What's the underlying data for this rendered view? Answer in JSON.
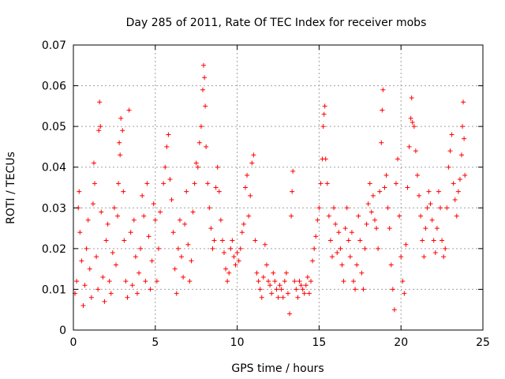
{
  "chart_data": {
    "type": "scatter",
    "title": "Day 285 of 2011, Rate Of TEC Index for receiver mobs",
    "xlabel": "GPS time / hours",
    "ylabel": "ROTI / TECUs",
    "xlim": [
      0,
      25
    ],
    "ylim": [
      0,
      0.07
    ],
    "x_ticks": [
      "0",
      "5",
      "10",
      "15",
      "20",
      "25"
    ],
    "x_tick_values": [
      0,
      5,
      10,
      15,
      20,
      25
    ],
    "y_ticks": [
      "0",
      "0.01",
      "0.02",
      "0.03",
      "0.04",
      "0.05",
      "0.06",
      "0.07"
    ],
    "y_tick_values": [
      0,
      0.01,
      0.02,
      0.03,
      0.04,
      0.05,
      0.06,
      0.07
    ],
    "grid": true,
    "marker": "+",
    "color": "#ff0000",
    "series": [
      {
        "name": "ROTI",
        "points": [
          [
            0.1,
            0.009
          ],
          [
            0.2,
            0.012
          ],
          [
            0.3,
            0.03
          ],
          [
            0.35,
            0.034
          ],
          [
            0.4,
            0.024
          ],
          [
            0.5,
            0.017
          ],
          [
            0.6,
            0.006
          ],
          [
            0.7,
            0.011
          ],
          [
            0.8,
            0.02
          ],
          [
            0.9,
            0.027
          ],
          [
            1.0,
            0.015
          ],
          [
            1.1,
            0.008
          ],
          [
            1.2,
            0.031
          ],
          [
            1.25,
            0.041
          ],
          [
            1.3,
            0.036
          ],
          [
            1.4,
            0.018
          ],
          [
            1.5,
            0.01
          ],
          [
            1.55,
            0.049
          ],
          [
            1.6,
            0.056
          ],
          [
            1.65,
            0.05
          ],
          [
            1.7,
            0.029
          ],
          [
            1.8,
            0.013
          ],
          [
            1.9,
            0.007
          ],
          [
            2.0,
            0.022
          ],
          [
            2.1,
            0.026
          ],
          [
            2.2,
            0.012
          ],
          [
            2.3,
            0.009
          ],
          [
            2.4,
            0.019
          ],
          [
            2.5,
            0.03
          ],
          [
            2.6,
            0.016
          ],
          [
            2.7,
            0.028
          ],
          [
            2.75,
            0.036
          ],
          [
            2.8,
            0.046
          ],
          [
            2.85,
            0.043
          ],
          [
            2.9,
            0.052
          ],
          [
            3.0,
            0.049
          ],
          [
            3.05,
            0.034
          ],
          [
            3.1,
            0.022
          ],
          [
            3.2,
            0.012
          ],
          [
            3.3,
            0.008
          ],
          [
            3.4,
            0.054
          ],
          [
            3.5,
            0.024
          ],
          [
            3.6,
            0.011
          ],
          [
            3.7,
            0.027
          ],
          [
            3.8,
            0.018
          ],
          [
            3.9,
            0.009
          ],
          [
            4.0,
            0.014
          ],
          [
            4.1,
            0.02
          ],
          [
            4.2,
            0.033
          ],
          [
            4.3,
            0.028
          ],
          [
            4.4,
            0.012
          ],
          [
            4.5,
            0.036
          ],
          [
            4.6,
            0.023
          ],
          [
            4.7,
            0.01
          ],
          [
            4.8,
            0.017
          ],
          [
            4.9,
            0.031
          ],
          [
            5.0,
            0.027
          ],
          [
            5.1,
            0.012
          ],
          [
            5.2,
            0.02
          ],
          [
            5.3,
            0.029
          ],
          [
            5.5,
            0.036
          ],
          [
            5.6,
            0.04
          ],
          [
            5.7,
            0.045
          ],
          [
            5.8,
            0.048
          ],
          [
            5.9,
            0.037
          ],
          [
            6.0,
            0.032
          ],
          [
            6.1,
            0.024
          ],
          [
            6.2,
            0.015
          ],
          [
            6.3,
            0.009
          ],
          [
            6.4,
            0.02
          ],
          [
            6.5,
            0.027
          ],
          [
            6.6,
            0.018
          ],
          [
            6.7,
            0.013
          ],
          [
            6.8,
            0.026
          ],
          [
            6.9,
            0.034
          ],
          [
            7.0,
            0.021
          ],
          [
            7.1,
            0.012
          ],
          [
            7.2,
            0.017
          ],
          [
            7.3,
            0.029
          ],
          [
            7.4,
            0.036
          ],
          [
            7.5,
            0.041
          ],
          [
            7.6,
            0.04
          ],
          [
            7.7,
            0.046
          ],
          [
            7.8,
            0.05
          ],
          [
            7.9,
            0.059
          ],
          [
            7.95,
            0.065
          ],
          [
            8.0,
            0.062
          ],
          [
            8.05,
            0.055
          ],
          [
            8.1,
            0.045
          ],
          [
            8.2,
            0.036
          ],
          [
            8.3,
            0.03
          ],
          [
            8.4,
            0.025
          ],
          [
            8.5,
            0.02
          ],
          [
            8.6,
            0.022
          ],
          [
            8.7,
            0.035
          ],
          [
            8.8,
            0.04
          ],
          [
            8.9,
            0.034
          ],
          [
            9.0,
            0.027
          ],
          [
            9.1,
            0.022
          ],
          [
            9.2,
            0.019
          ],
          [
            9.3,
            0.015
          ],
          [
            9.4,
            0.012
          ],
          [
            9.5,
            0.014
          ],
          [
            9.6,
            0.02
          ],
          [
            9.7,
            0.022
          ],
          [
            9.8,
            0.018
          ],
          [
            9.9,
            0.016
          ],
          [
            10.0,
            0.019
          ],
          [
            10.1,
            0.017
          ],
          [
            10.2,
            0.02
          ],
          [
            10.3,
            0.024
          ],
          [
            10.4,
            0.026
          ],
          [
            10.5,
            0.035
          ],
          [
            10.6,
            0.038
          ],
          [
            10.7,
            0.028
          ],
          [
            10.8,
            0.033
          ],
          [
            10.9,
            0.041
          ],
          [
            11.0,
            0.043
          ],
          [
            11.1,
            0.022
          ],
          [
            11.2,
            0.014
          ],
          [
            11.3,
            0.012
          ],
          [
            11.4,
            0.01
          ],
          [
            11.5,
            0.008
          ],
          [
            11.6,
            0.013
          ],
          [
            11.7,
            0.021
          ],
          [
            11.8,
            0.016
          ],
          [
            11.9,
            0.012
          ],
          [
            12.0,
            0.011
          ],
          [
            12.1,
            0.009
          ],
          [
            12.2,
            0.014
          ],
          [
            12.3,
            0.012
          ],
          [
            12.4,
            0.01
          ],
          [
            12.5,
            0.008
          ],
          [
            12.6,
            0.011
          ],
          [
            12.7,
            0.01
          ],
          [
            12.8,
            0.008
          ],
          [
            12.9,
            0.012
          ],
          [
            13.0,
            0.014
          ],
          [
            13.1,
            0.009
          ],
          [
            13.2,
            0.004
          ],
          [
            13.3,
            0.028
          ],
          [
            13.35,
            0.034
          ],
          [
            13.4,
            0.039
          ],
          [
            13.5,
            0.012
          ],
          [
            13.6,
            0.01
          ],
          [
            13.7,
            0.008
          ],
          [
            13.8,
            0.012
          ],
          [
            13.9,
            0.011
          ],
          [
            14.0,
            0.01
          ],
          [
            14.1,
            0.009
          ],
          [
            14.2,
            0.011
          ],
          [
            14.3,
            0.013
          ],
          [
            14.4,
            0.009
          ],
          [
            14.5,
            0.012
          ],
          [
            14.6,
            0.017
          ],
          [
            14.7,
            0.02
          ],
          [
            14.8,
            0.023
          ],
          [
            14.9,
            0.027
          ],
          [
            15.0,
            0.03
          ],
          [
            15.1,
            0.036
          ],
          [
            15.2,
            0.042
          ],
          [
            15.25,
            0.05
          ],
          [
            15.3,
            0.053
          ],
          [
            15.35,
            0.055
          ],
          [
            15.4,
            0.042
          ],
          [
            15.5,
            0.036
          ],
          [
            15.6,
            0.028
          ],
          [
            15.7,
            0.022
          ],
          [
            15.8,
            0.018
          ],
          [
            15.9,
            0.03
          ],
          [
            16.0,
            0.026
          ],
          [
            16.1,
            0.019
          ],
          [
            16.2,
            0.024
          ],
          [
            16.3,
            0.02
          ],
          [
            16.4,
            0.016
          ],
          [
            16.5,
            0.012
          ],
          [
            16.6,
            0.025
          ],
          [
            16.7,
            0.03
          ],
          [
            16.8,
            0.022
          ],
          [
            16.9,
            0.018
          ],
          [
            17.0,
            0.024
          ],
          [
            17.1,
            0.012
          ],
          [
            17.2,
            0.01
          ],
          [
            17.3,
            0.016
          ],
          [
            17.4,
            0.028
          ],
          [
            17.5,
            0.022
          ],
          [
            17.6,
            0.014
          ],
          [
            17.7,
            0.01
          ],
          [
            17.8,
            0.02
          ],
          [
            17.9,
            0.026
          ],
          [
            18.0,
            0.031
          ],
          [
            18.1,
            0.036
          ],
          [
            18.2,
            0.029
          ],
          [
            18.3,
            0.033
          ],
          [
            18.4,
            0.027
          ],
          [
            18.5,
            0.025
          ],
          [
            18.6,
            0.02
          ],
          [
            18.7,
            0.034
          ],
          [
            18.8,
            0.046
          ],
          [
            18.85,
            0.054
          ],
          [
            18.9,
            0.059
          ],
          [
            19.0,
            0.035
          ],
          [
            19.1,
            0.038
          ],
          [
            19.2,
            0.03
          ],
          [
            19.3,
            0.025
          ],
          [
            19.4,
            0.016
          ],
          [
            19.5,
            0.01
          ],
          [
            19.6,
            0.005
          ],
          [
            19.7,
            0.036
          ],
          [
            19.8,
            0.042
          ],
          [
            19.9,
            0.028
          ],
          [
            20.0,
            0.018
          ],
          [
            20.1,
            0.012
          ],
          [
            20.2,
            0.009
          ],
          [
            20.3,
            0.021
          ],
          [
            20.4,
            0.035
          ],
          [
            20.5,
            0.045
          ],
          [
            20.6,
            0.052
          ],
          [
            20.65,
            0.057
          ],
          [
            20.7,
            0.051
          ],
          [
            20.8,
            0.05
          ],
          [
            20.9,
            0.044
          ],
          [
            21.0,
            0.038
          ],
          [
            21.1,
            0.033
          ],
          [
            21.2,
            0.028
          ],
          [
            21.3,
            0.022
          ],
          [
            21.4,
            0.018
          ],
          [
            21.5,
            0.025
          ],
          [
            21.6,
            0.03
          ],
          [
            21.7,
            0.034
          ],
          [
            21.8,
            0.031
          ],
          [
            21.9,
            0.027
          ],
          [
            22.0,
            0.022
          ],
          [
            22.1,
            0.019
          ],
          [
            22.2,
            0.025
          ],
          [
            22.3,
            0.034
          ],
          [
            22.4,
            0.03
          ],
          [
            22.5,
            0.022
          ],
          [
            22.6,
            0.018
          ],
          [
            22.7,
            0.02
          ],
          [
            22.8,
            0.03
          ],
          [
            22.9,
            0.04
          ],
          [
            23.0,
            0.044
          ],
          [
            23.1,
            0.048
          ],
          [
            23.2,
            0.036
          ],
          [
            23.3,
            0.032
          ],
          [
            23.4,
            0.028
          ],
          [
            23.5,
            0.034
          ],
          [
            23.6,
            0.037
          ],
          [
            23.7,
            0.043
          ],
          [
            23.75,
            0.05
          ],
          [
            23.8,
            0.056
          ],
          [
            23.85,
            0.047
          ],
          [
            23.9,
            0.038
          ]
        ]
      }
    ]
  }
}
